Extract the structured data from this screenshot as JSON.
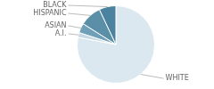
{
  "chart_data": {
    "type": "pie",
    "categories": [
      "WHITE",
      "A.I.",
      "ASIAN",
      "HISPANIC",
      "BLACK"
    ],
    "values": [
      78,
      2,
      4,
      9,
      7
    ],
    "colors": [
      "#dce8f0",
      "#c8d8e4",
      "#6fa0b8",
      "#5b8fa8",
      "#4a82a0"
    ]
  }
}
